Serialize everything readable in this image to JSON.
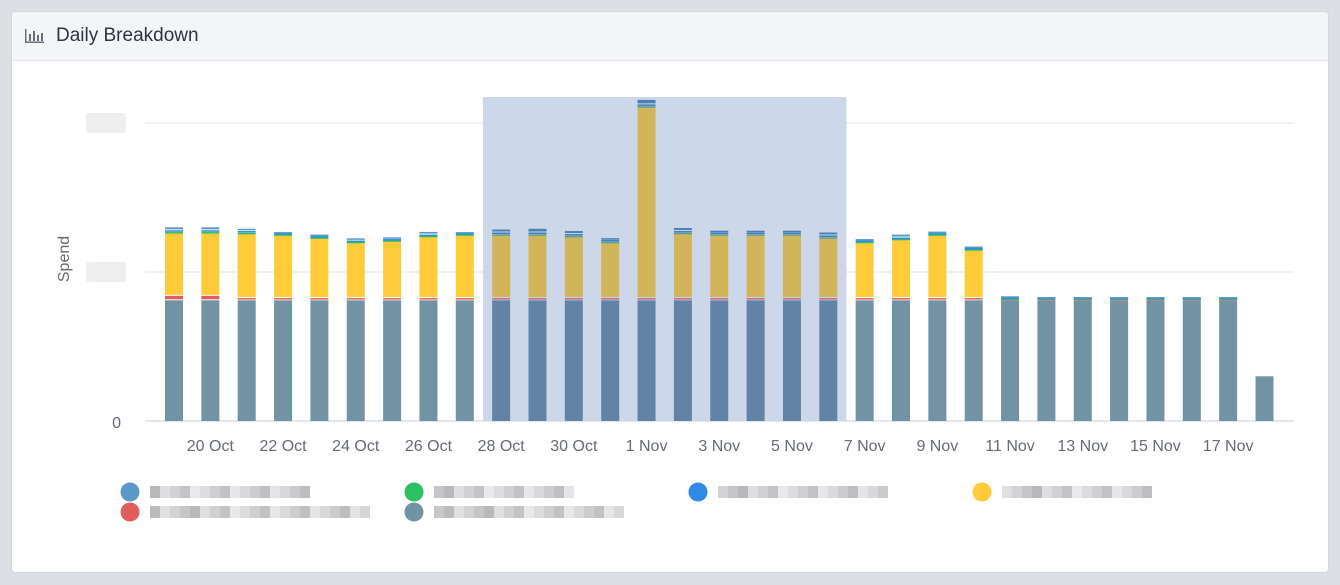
{
  "panel": {
    "title": "Daily Breakdown",
    "icon": "bar-chart-icon"
  },
  "chart_data": {
    "type": "bar",
    "stacked": true,
    "ylabel": "Spend",
    "y_tick_labels": [
      "0"
    ],
    "ylim": [
      0,
      2.2
    ],
    "grid": true,
    "categories": [
      "19 Oct",
      "20 Oct",
      "21 Oct",
      "22 Oct",
      "23 Oct",
      "24 Oct",
      "25 Oct",
      "26 Oct",
      "27 Oct",
      "28 Oct",
      "29 Oct",
      "30 Oct",
      "31 Oct",
      "1 Nov",
      "2 Nov",
      "3 Nov",
      "4 Nov",
      "5 Nov",
      "6 Nov",
      "7 Nov",
      "8 Nov",
      "9 Nov",
      "10 Nov",
      "11 Nov",
      "12 Nov",
      "13 Nov",
      "14 Nov",
      "15 Nov",
      "16 Nov",
      "17 Nov",
      "18 Nov"
    ],
    "x_tick_labels": [
      "20 Oct",
      "22 Oct",
      "24 Oct",
      "26 Oct",
      "28 Oct",
      "30 Oct",
      "1 Nov",
      "3 Nov",
      "5 Nov",
      "7 Nov",
      "9 Nov",
      "11 Nov",
      "13 Nov",
      "15 Nov",
      "17 Nov"
    ],
    "highlight_range": [
      "28 Oct",
      "6 Nov"
    ],
    "series": [
      {
        "color": "#7193a3",
        "highlight_color": "#6383a6",
        "values": [
          0.81,
          0.81,
          0.81,
          0.81,
          0.81,
          0.81,
          0.81,
          0.81,
          0.81,
          0.81,
          0.81,
          0.81,
          0.81,
          0.81,
          0.81,
          0.81,
          0.81,
          0.81,
          0.81,
          0.81,
          0.81,
          0.81,
          0.81,
          0.81,
          0.81,
          0.81,
          0.81,
          0.81,
          0.81,
          0.81,
          0.3
        ]
      },
      {
        "color": "#e05d5d",
        "highlight_color": "#c26a78",
        "values": [
          0.03,
          0.03,
          0.015,
          0.015,
          0.015,
          0.015,
          0.015,
          0.015,
          0.015,
          0.015,
          0.015,
          0.015,
          0.015,
          0.015,
          0.015,
          0.015,
          0.015,
          0.015,
          0.015,
          0.015,
          0.015,
          0.015,
          0.015,
          0.01,
          0.01,
          0.01,
          0.01,
          0.01,
          0.01,
          0.01,
          0
        ]
      },
      {
        "color": "#ffcb39",
        "highlight_color": "#d1b55a",
        "values": [
          0.42,
          0.42,
          0.43,
          0.42,
          0.4,
          0.37,
          0.38,
          0.41,
          0.42,
          0.42,
          0.42,
          0.41,
          0.37,
          1.28,
          0.43,
          0.42,
          0.42,
          0.42,
          0.4,
          0.37,
          0.39,
          0.42,
          0.32,
          0,
          0,
          0,
          0,
          0,
          0,
          0,
          0
        ]
      },
      {
        "color": "#2bc163",
        "highlight_color": "#5d9e8c",
        "values": [
          0.008,
          0.008,
          0.008,
          0.008,
          0.008,
          0.008,
          0.008,
          0.008,
          0.008,
          0.008,
          0.008,
          0.008,
          0.008,
          0.008,
          0.008,
          0.008,
          0.008,
          0.008,
          0.008,
          0.008,
          0.008,
          0.008,
          0.008,
          0.004,
          0.004,
          0.004,
          0.004,
          0.004,
          0.004,
          0.004,
          0
        ]
      },
      {
        "color": "#2d8be6",
        "highlight_color": "#3b7fc8",
        "values": [
          0.012,
          0.012,
          0.012,
          0.008,
          0.008,
          0.008,
          0.008,
          0.008,
          0.008,
          0.012,
          0.012,
          0.012,
          0.012,
          0.012,
          0.012,
          0.012,
          0.012,
          0.012,
          0.012,
          0.008,
          0.008,
          0.008,
          0.008,
          0.006,
          0.004,
          0.004,
          0.004,
          0.004,
          0.004,
          0.004,
          0
        ]
      },
      {
        "color": "#5b97c7",
        "highlight_color": "#4f7fb0",
        "values": [
          0.02,
          0.02,
          0.015,
          0.007,
          0.01,
          0.015,
          0.012,
          0.018,
          0.007,
          0.02,
          0.025,
          0.02,
          0.012,
          0.03,
          0.02,
          0.012,
          0.012,
          0.012,
          0.02,
          0.01,
          0.02,
          0.01,
          0.01,
          0.007,
          0.004,
          0.004,
          0.004,
          0.004,
          0.004,
          0.004,
          0
        ]
      }
    ],
    "legend": {
      "position": "bottom",
      "colors": [
        "#5b97c7",
        "#2bc163",
        "#2d8be6",
        "#ffcb39",
        "#e05d5d",
        "#7193a3"
      ]
    }
  }
}
